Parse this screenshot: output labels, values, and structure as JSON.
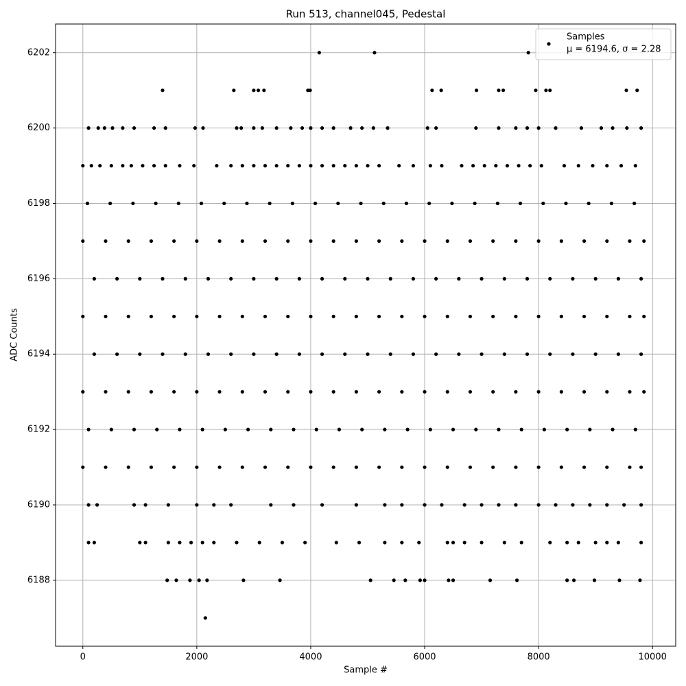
{
  "chart_data": {
    "type": "scatter",
    "title": "Run 513, channel045, Pedestal",
    "xlabel": "Sample #",
    "ylabel": "ADC Counts",
    "series": [
      {
        "name": "Samples",
        "color": "#000000",
        "x": [
          4150,
          5120,
          7820,
          1400,
          2650,
          3000,
          3080,
          3180,
          3950,
          3990,
          6130,
          6290,
          6910,
          7300,
          7380,
          7950,
          8130,
          8200,
          9540,
          9730,
          100,
          270,
          380,
          520,
          700,
          900,
          1250,
          1450,
          1970,
          2110,
          2700,
          2780,
          3000,
          3150,
          3400,
          3650,
          3850,
          4000,
          4200,
          4400,
          4700,
          4900,
          5100,
          5350,
          6050,
          6200,
          6900,
          7300,
          7600,
          7800,
          8000,
          8300,
          8750,
          9100,
          9300,
          9550,
          9800,
          0,
          150,
          300,
          500,
          700,
          850,
          1050,
          1250,
          1450,
          1700,
          1950,
          2350,
          2600,
          2800,
          3000,
          3200,
          3400,
          3600,
          3800,
          4000,
          4200,
          4400,
          4600,
          4800,
          5000,
          5200,
          5550,
          5800,
          6100,
          6300,
          6650,
          6850,
          7050,
          7250,
          7450,
          7650,
          7850,
          8050,
          8450,
          8700,
          8950,
          9200,
          9450,
          9700,
          80,
          480,
          880,
          1280,
          1680,
          2080,
          2480,
          2880,
          3280,
          3680,
          4080,
          4480,
          4880,
          5280,
          5680,
          6080,
          6480,
          6880,
          7280,
          7680,
          8080,
          8480,
          8880,
          9280,
          9680,
          0,
          400,
          800,
          1200,
          1600,
          2000,
          2400,
          2800,
          3200,
          3600,
          4000,
          4400,
          4800,
          5200,
          5600,
          6000,
          6400,
          6800,
          7200,
          7600,
          8000,
          8400,
          8800,
          9200,
          9600,
          9850,
          200,
          600,
          1000,
          1400,
          1800,
          2200,
          2600,
          3000,
          3400,
          3800,
          4200,
          4600,
          5000,
          5400,
          5800,
          6200,
          6600,
          7000,
          7400,
          7800,
          8200,
          8600,
          9000,
          9400,
          9800,
          0,
          400,
          800,
          1200,
          1600,
          2000,
          2400,
          2800,
          3200,
          3600,
          4000,
          4400,
          4800,
          5200,
          5600,
          6000,
          6400,
          6800,
          7200,
          7600,
          8000,
          8400,
          8800,
          9200,
          9600,
          9850,
          200,
          600,
          1000,
          1400,
          1800,
          2200,
          2600,
          3000,
          3400,
          3800,
          4200,
          4600,
          5000,
          5400,
          5800,
          6200,
          6600,
          7000,
          7400,
          7800,
          8200,
          8600,
          9000,
          9400,
          9800,
          0,
          400,
          800,
          1200,
          1600,
          2000,
          2400,
          2800,
          3200,
          3600,
          4000,
          4400,
          4800,
          5200,
          5600,
          6000,
          6400,
          6800,
          7200,
          7600,
          8000,
          8400,
          8800,
          9200,
          9600,
          9850,
          100,
          500,
          900,
          1300,
          1700,
          2100,
          2500,
          2900,
          3300,
          3700,
          4100,
          4500,
          4900,
          5300,
          5700,
          6100,
          6500,
          6900,
          7300,
          7700,
          8100,
          8500,
          8900,
          9300,
          9700,
          0,
          400,
          800,
          1200,
          1600,
          2000,
          2400,
          2800,
          3200,
          3600,
          4000,
          4400,
          4800,
          5200,
          5600,
          6000,
          6400,
          6800,
          7200,
          7600,
          8000,
          8400,
          8800,
          9200,
          9600,
          9800,
          100,
          250,
          900,
          1100,
          1500,
          2000,
          2300,
          2600,
          3300,
          3700,
          4200,
          4800,
          5300,
          5600,
          6000,
          6300,
          6700,
          7000,
          7300,
          7600,
          8000,
          8300,
          8600,
          8900,
          9200,
          9500,
          9800,
          100,
          200,
          1000,
          1100,
          1500,
          1700,
          1900,
          2100,
          2300,
          2700,
          3100,
          3500,
          3900,
          4450,
          4850,
          5300,
          5600,
          5900,
          6400,
          6500,
          6700,
          7000,
          7400,
          7700,
          8200,
          8500,
          8700,
          9000,
          9200,
          9400,
          9800,
          1480,
          1640,
          1880,
          2040,
          2180,
          2820,
          3460,
          5050,
          5460,
          5660,
          5920,
          6000,
          6420,
          6500,
          7150,
          7620,
          8500,
          8620,
          8980,
          9420,
          9780,
          2150
        ],
        "values": [
          6202,
          6202,
          6202,
          6201,
          6201,
          6201,
          6201,
          6201,
          6201,
          6201,
          6201,
          6201,
          6201,
          6201,
          6201,
          6201,
          6201,
          6201,
          6201,
          6201,
          6200,
          6200,
          6200,
          6200,
          6200,
          6200,
          6200,
          6200,
          6200,
          6200,
          6200,
          6200,
          6200,
          6200,
          6200,
          6200,
          6200,
          6200,
          6200,
          6200,
          6200,
          6200,
          6200,
          6200,
          6200,
          6200,
          6200,
          6200,
          6200,
          6200,
          6200,
          6200,
          6200,
          6200,
          6200,
          6200,
          6200,
          6199,
          6199,
          6199,
          6199,
          6199,
          6199,
          6199,
          6199,
          6199,
          6199,
          6199,
          6199,
          6199,
          6199,
          6199,
          6199,
          6199,
          6199,
          6199,
          6199,
          6199,
          6199,
          6199,
          6199,
          6199,
          6199,
          6199,
          6199,
          6199,
          6199,
          6199,
          6199,
          6199,
          6199,
          6199,
          6199,
          6199,
          6199,
          6199,
          6199,
          6199,
          6199,
          6199,
          6199,
          6198,
          6198,
          6198,
          6198,
          6198,
          6198,
          6198,
          6198,
          6198,
          6198,
          6198,
          6198,
          6198,
          6198,
          6198,
          6198,
          6198,
          6198,
          6198,
          6198,
          6198,
          6198,
          6198,
          6198,
          6198,
          6197,
          6197,
          6197,
          6197,
          6197,
          6197,
          6197,
          6197,
          6197,
          6197,
          6197,
          6197,
          6197,
          6197,
          6197,
          6197,
          6197,
          6197,
          6197,
          6197,
          6197,
          6197,
          6197,
          6197,
          6197,
          6197,
          6196,
          6196,
          6196,
          6196,
          6196,
          6196,
          6196,
          6196,
          6196,
          6196,
          6196,
          6196,
          6196,
          6196,
          6196,
          6196,
          6196,
          6196,
          6196,
          6196,
          6196,
          6196,
          6196,
          6196,
          6196,
          6195,
          6195,
          6195,
          6195,
          6195,
          6195,
          6195,
          6195,
          6195,
          6195,
          6195,
          6195,
          6195,
          6195,
          6195,
          6195,
          6195,
          6195,
          6195,
          6195,
          6195,
          6195,
          6195,
          6195,
          6195,
          6195,
          6194,
          6194,
          6194,
          6194,
          6194,
          6194,
          6194,
          6194,
          6194,
          6194,
          6194,
          6194,
          6194,
          6194,
          6194,
          6194,
          6194,
          6194,
          6194,
          6194,
          6194,
          6194,
          6194,
          6194,
          6194,
          6193,
          6193,
          6193,
          6193,
          6193,
          6193,
          6193,
          6193,
          6193,
          6193,
          6193,
          6193,
          6193,
          6193,
          6193,
          6193,
          6193,
          6193,
          6193,
          6193,
          6193,
          6193,
          6193,
          6193,
          6193,
          6193,
          6192,
          6192,
          6192,
          6192,
          6192,
          6192,
          6192,
          6192,
          6192,
          6192,
          6192,
          6192,
          6192,
          6192,
          6192,
          6192,
          6192,
          6192,
          6192,
          6192,
          6192,
          6192,
          6192,
          6192,
          6192,
          6191,
          6191,
          6191,
          6191,
          6191,
          6191,
          6191,
          6191,
          6191,
          6191,
          6191,
          6191,
          6191,
          6191,
          6191,
          6191,
          6191,
          6191,
          6191,
          6191,
          6191,
          6191,
          6191,
          6191,
          6191,
          6191,
          6190,
          6190,
          6190,
          6190,
          6190,
          6190,
          6190,
          6190,
          6190,
          6190,
          6190,
          6190,
          6190,
          6190,
          6190,
          6190,
          6190,
          6190,
          6190,
          6190,
          6190,
          6190,
          6190,
          6190,
          6190,
          6190,
          6190,
          6189,
          6189,
          6189,
          6189,
          6189,
          6189,
          6189,
          6189,
          6189,
          6189,
          6189,
          6189,
          6189,
          6189,
          6189,
          6189,
          6189,
          6189,
          6189,
          6189,
          6189,
          6189,
          6189,
          6189,
          6189,
          6189,
          6189,
          6189,
          6189,
          6189,
          6189,
          6188,
          6188,
          6188,
          6188,
          6188,
          6188,
          6188,
          6188,
          6188,
          6188,
          6188,
          6188,
          6188,
          6188,
          6188,
          6188,
          6188,
          6188,
          6188,
          6188,
          6188,
          6187
        ]
      }
    ],
    "annotation": "μ = 6194.6, σ = 2.28",
    "xlim": [
      -479,
      10407
    ],
    "xticks": [
      0,
      2000,
      4000,
      6000,
      8000,
      10000
    ],
    "ylim": [
      6186.25,
      6202.76
    ],
    "yticks": [
      6188,
      6190,
      6192,
      6194,
      6196,
      6198,
      6200,
      6202
    ],
    "grid": true,
    "legend": "upper right"
  }
}
